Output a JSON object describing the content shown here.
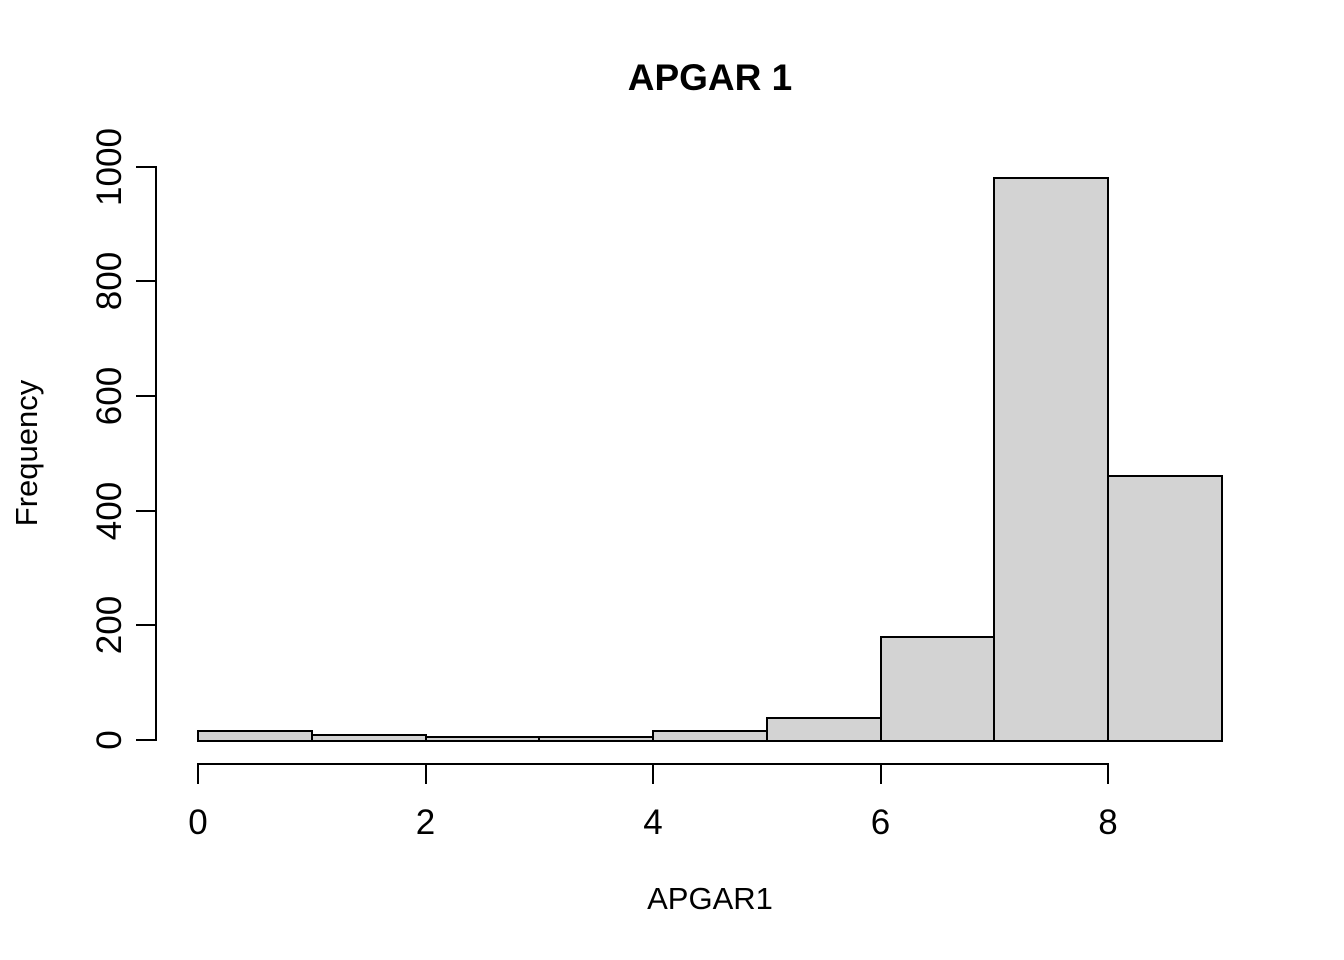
{
  "figure": {
    "title": "APGAR 1",
    "xlabel": "APGAR1",
    "ylabel": "Frequency"
  },
  "chart_data": {
    "type": "bar",
    "subtype": "histogram",
    "title": "APGAR 1",
    "xlabel": "APGAR1",
    "ylabel": "Frequency",
    "bin_edges": [
      0,
      1,
      2,
      3,
      4,
      5,
      6,
      7,
      8,
      9
    ],
    "values": [
      15,
      9,
      6,
      5,
      15,
      38,
      180,
      980,
      460
    ],
    "xticks": [
      0,
      2,
      4,
      6,
      8
    ],
    "yticks": [
      0,
      200,
      400,
      600,
      800,
      1000
    ],
    "xlim": [
      0,
      9
    ],
    "ylim": [
      0,
      1000
    ],
    "grid": false,
    "legend": false,
    "bar_fill": "#d3d3d3",
    "bar_border": "#000000",
    "background": "#ffffff",
    "text_color": "#000000"
  }
}
